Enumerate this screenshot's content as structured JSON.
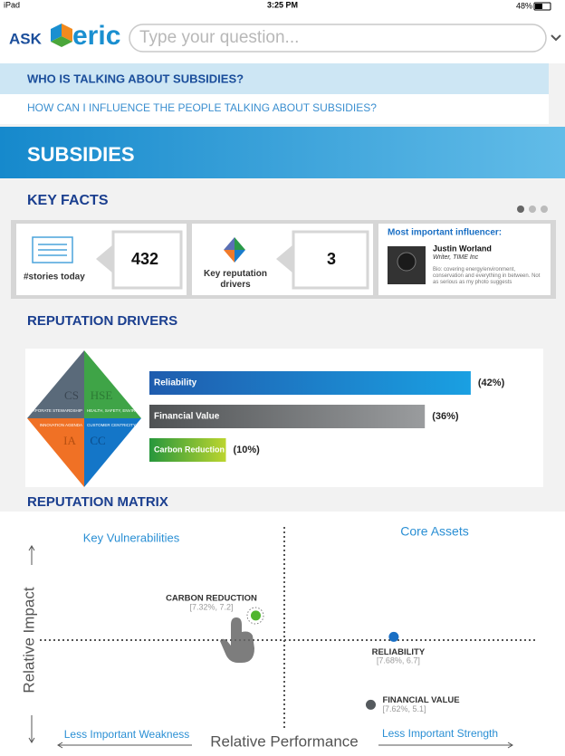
{
  "status_bar": {
    "device": "iPad",
    "time": "3:25 PM",
    "battery": "48%"
  },
  "header": {
    "brand_prefix": "ASK",
    "brand": "eric",
    "search_placeholder": "Type your question..."
  },
  "questions": [
    "WHO IS TALKING ABOUT SUBSIDIES?",
    "HOW CAN I INFLUENCE THE PEOPLE TALKING ABOUT SUBSIDIES?"
  ],
  "topic": "SUBSIDIES",
  "key_facts": {
    "title": "KEY FACTS",
    "stories": {
      "value": 432,
      "label": "#stories today"
    },
    "drivers": {
      "value": 3,
      "label": "Key reputation drivers"
    },
    "influencer": {
      "heading": "Most important influencer:",
      "name": "Justin Worland",
      "role": "Writer, TIME Inc",
      "bio": "Bio: covering energy/environment, conservation and everything in between. Not as serious as my photo suggests"
    }
  },
  "reputation_drivers": {
    "title": "REPUTATION DRIVERS",
    "diamond": {
      "cs": "CS",
      "hse": "HSE",
      "cs_name": "CORPORATE STEWARDSHIP",
      "hse_name": "HEALTH, SAFETY, ENVIRONMENT",
      "ia_name": "INNOVATION AGENDA",
      "cc_name": "CUSTOMER CENTRICITY",
      "ia": "IA",
      "cc": "CC"
    },
    "categories": [
      "Reliability",
      "Financial Value",
      "Carbon Reduction"
    ],
    "values": [
      42,
      36,
      10
    ],
    "value_labels": [
      "(42%)",
      "(36%)",
      "(10%)"
    ],
    "colors": [
      [
        "#1f5cae",
        "#1aa0e2"
      ],
      [
        "#4f5254",
        "#9a9c9e"
      ],
      [
        "#27973c",
        "#bcd52f"
      ]
    ]
  },
  "reputation_matrix": {
    "title": "REPUTATION MATRIX",
    "quadrants": [
      "Key Vulnerabilities",
      "Core Assets"
    ],
    "y_axis_label": "Relative Impact",
    "x_axis_label": "Relative Performance",
    "x_left_label": "Less Important Weakness",
    "x_right_label": "Less Important Strength",
    "xlim": [
      6.7,
      8.07
    ],
    "ylim": [
      4.0,
      9.33
    ],
    "points": [
      {
        "name": "CARBON REDUCTION",
        "x": 7.32,
        "y": 7.2,
        "label": "[7.32%, 7.2]",
        "color": "#4fb52e"
      },
      {
        "name": "RELIABILITY",
        "x": 7.68,
        "y": 6.7,
        "label": "[7.68%, 6.7]",
        "color": "#1a6fc4"
      },
      {
        "name": "FINANCIAL VALUE",
        "x": 7.62,
        "y": 5.1,
        "label": "[7.62%, 5.1]",
        "color": "#555a5e"
      }
    ]
  }
}
